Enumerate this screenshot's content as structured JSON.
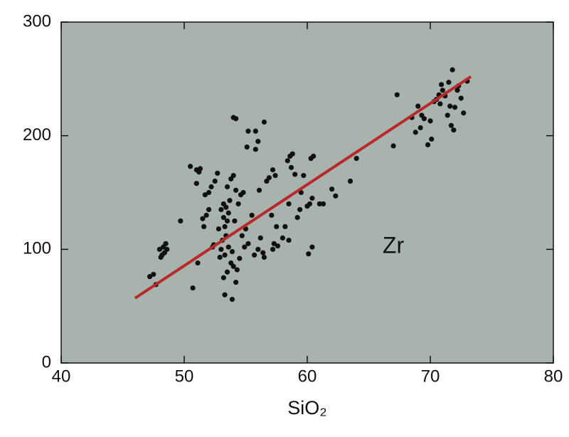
{
  "chart_data": {
    "type": "scatter",
    "x_label": "SiO₂",
    "annotation": "Zr",
    "xlim": [
      40,
      80
    ],
    "xticks": [
      40,
      50,
      60,
      70,
      80
    ],
    "ylim": [
      0,
      300
    ],
    "yticks": [
      0,
      100,
      200,
      300
    ],
    "background": "#a9b3ad",
    "series": [
      {
        "color": "#111111",
        "x": [
          47.2,
          47.5,
          47.7,
          48,
          48.2,
          48.3,
          48.5,
          48.4,
          48.1,
          48.6,
          49.7,
          50.7,
          50.5,
          51,
          51.3,
          51.2,
          51,
          51.1,
          51.8,
          51.6,
          51.7,
          52,
          52.2,
          52.5,
          52.7,
          52,
          52.3,
          52.8,
          53,
          53.2,
          53.3,
          53.5,
          53.4,
          53.6,
          53.7,
          53.8,
          53.5,
          53.2,
          53.1,
          53,
          53.3,
          53.6,
          53.9,
          53.8,
          53.5,
          53.2,
          53.3,
          53.9,
          54.2,
          54,
          54.3,
          54.5,
          54.7,
          54.4,
          54.2,
          54,
          54.1,
          54.6,
          54.8,
          55,
          54.9,
          55.2,
          55.5,
          55.7,
          56,
          56.2,
          56.4,
          56.5,
          56.1,
          56.7,
          56.9,
          57.2,
          57.4,
          57.1,
          57.5,
          57.3,
          57.2,
          57.6,
          58,
          58.2,
          58.5,
          58.4,
          58.6,
          58.8,
          58.7,
          59,
          58.5,
          59.2,
          59.4,
          59.5,
          59.7,
          60,
          60.2,
          60.4,
          60.3,
          60.5,
          60.1,
          60.4,
          61,
          61.3,
          62,
          62.3,
          63.5,
          64,
          54,
          54.2,
          55.1,
          55.2,
          55.8,
          56.5,
          56,
          67,
          67.3,
          68.5,
          68.8,
          69,
          69.2,
          69.5,
          69.8,
          70,
          70.1,
          70.3,
          70.5,
          70.7,
          70.9,
          71,
          71.2,
          71.4,
          71.6,
          71.7,
          71.9,
          72,
          72.2,
          72.3,
          71.8,
          72.5,
          72.7,
          73,
          71.5,
          70.8,
          69.3,
          55.8,
          52.4,
          52.9,
          51.5,
          53.4
        ],
        "y": [
          76,
          78,
          69,
          100,
          95,
          102,
          105,
          97,
          93,
          100,
          125,
          66,
          173,
          170,
          171,
          168,
          158,
          88,
          130,
          120,
          148,
          150,
          155,
          160,
          167,
          135,
          102,
          118,
          135,
          128,
          120,
          125,
          112,
          132,
          143,
          162,
          155,
          140,
          108,
          100,
          95,
          102,
          98,
          88,
          80,
          75,
          60,
          56,
          71,
          85,
          82,
          92,
          112,
          140,
          152,
          165,
          125,
          148,
          150,
          118,
          102,
          105,
          130,
          95,
          100,
          110,
          97,
          93,
          152,
          160,
          163,
          170,
          165,
          130,
          120,
          105,
          100,
          103,
          110,
          120,
          140,
          178,
          182,
          184,
          172,
          166,
          108,
          128,
          135,
          150,
          165,
          138,
          140,
          145,
          180,
          182,
          96,
          102,
          140,
          140,
          153,
          147,
          160,
          180,
          216,
          215,
          190,
          204,
          204,
          212,
          195,
          191,
          236,
          216,
          203,
          226,
          207,
          215,
          192,
          213,
          197,
          230,
          232,
          236,
          245,
          240,
          235,
          218,
          226,
          209,
          205,
          225,
          240,
          244,
          258,
          233,
          220,
          248,
          247,
          228,
          218,
          188,
          104,
          93,
          127,
          137
        ]
      },
      {
        "type": "line",
        "color": "#b8292b",
        "x": [
          46,
          73.3
        ],
        "y": [
          57,
          252
        ]
      }
    ]
  }
}
